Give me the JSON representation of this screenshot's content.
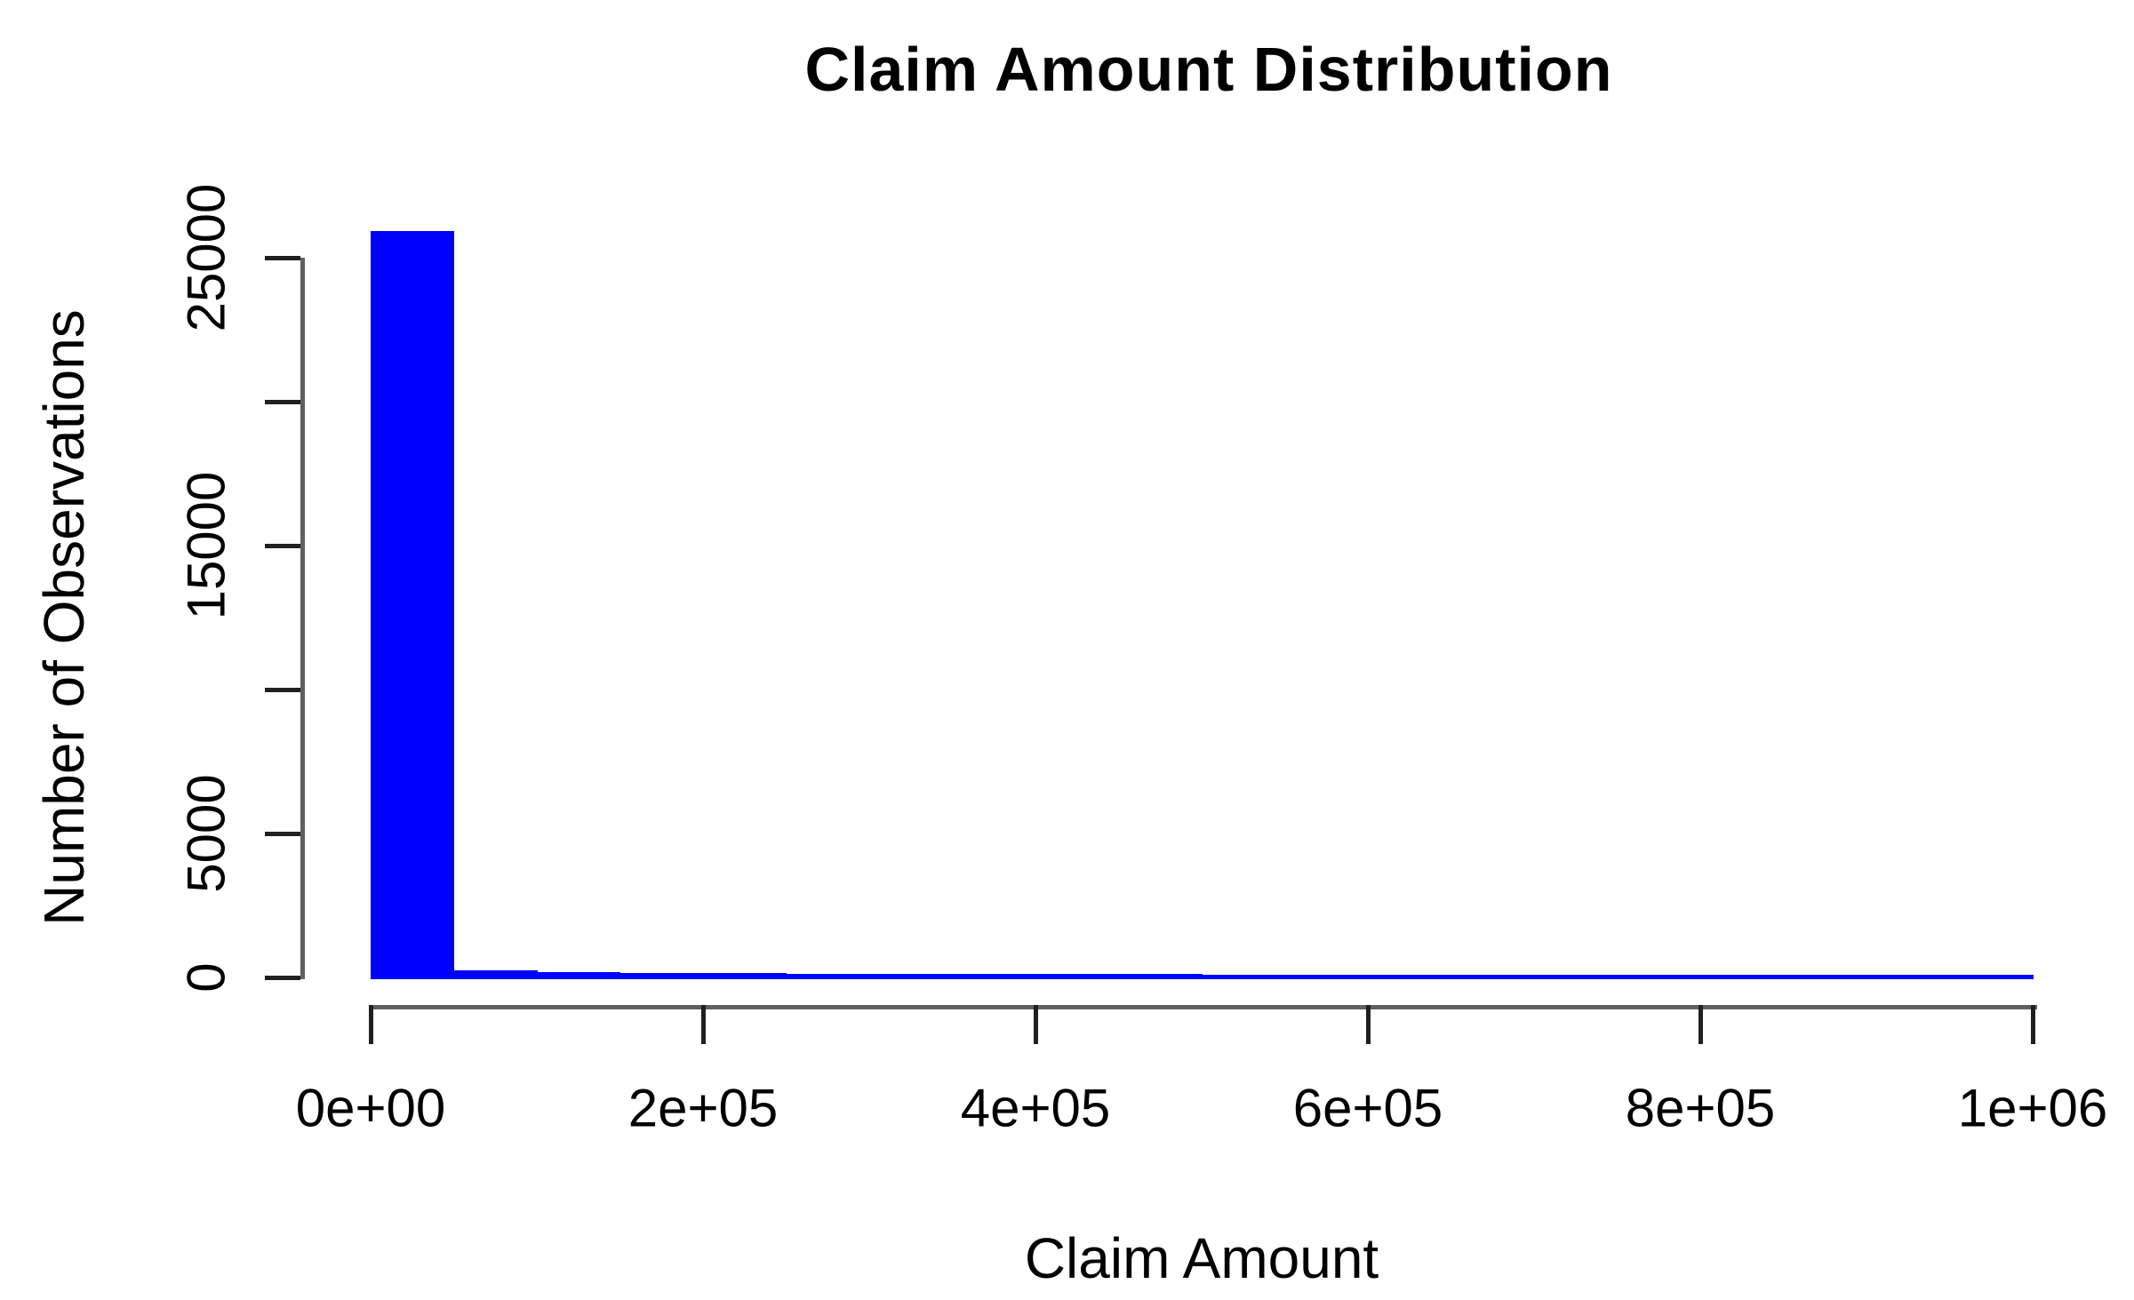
{
  "chart_data": {
    "type": "bar",
    "subtype": "histogram",
    "title": "Claim Amount Distribution",
    "xlabel": "Claim Amount",
    "ylabel": "Number of Observations",
    "xlim": [
      0,
      1000000
    ],
    "ylim": [
      0,
      26000
    ],
    "grid": "off",
    "legend": "none",
    "bar_color": "#0000ff",
    "axis_line_color": "#606060",
    "tick_color": "#202020",
    "text_color": "#000000",
    "bin_width": 50000,
    "x_ticks": [
      {
        "value": 0,
        "label": "0e+00"
      },
      {
        "value": 200000,
        "label": "2e+05"
      },
      {
        "value": 400000,
        "label": "4e+05"
      },
      {
        "value": 600000,
        "label": "6e+05"
      },
      {
        "value": 800000,
        "label": "8e+05"
      },
      {
        "value": 1000000,
        "label": "1e+06"
      }
    ],
    "y_ticks": [
      {
        "value": 0,
        "label": "0"
      },
      {
        "value": 5000,
        "label": "5000"
      },
      {
        "value": 10000,
        "label": ""
      },
      {
        "value": 15000,
        "label": "15000"
      },
      {
        "value": 20000,
        "label": ""
      },
      {
        "value": 25000,
        "label": "25000"
      }
    ],
    "bins": [
      {
        "x0": 0,
        "x1": 50000,
        "count": 26000
      },
      {
        "x0": 50000,
        "x1": 100000,
        "count": 300
      },
      {
        "x0": 100000,
        "x1": 150000,
        "count": 250
      },
      {
        "x0": 150000,
        "x1": 200000,
        "count": 220
      },
      {
        "x0": 200000,
        "x1": 250000,
        "count": 205
      },
      {
        "x0": 250000,
        "x1": 300000,
        "count": 195
      },
      {
        "x0": 300000,
        "x1": 350000,
        "count": 185
      },
      {
        "x0": 350000,
        "x1": 400000,
        "count": 180
      },
      {
        "x0": 400000,
        "x1": 450000,
        "count": 175
      },
      {
        "x0": 450000,
        "x1": 500000,
        "count": 170
      },
      {
        "x0": 500000,
        "x1": 550000,
        "count": 165
      },
      {
        "x0": 550000,
        "x1": 600000,
        "count": 160
      },
      {
        "x0": 600000,
        "x1": 650000,
        "count": 158
      },
      {
        "x0": 650000,
        "x1": 700000,
        "count": 155
      },
      {
        "x0": 700000,
        "x1": 750000,
        "count": 152
      },
      {
        "x0": 750000,
        "x1": 800000,
        "count": 150
      },
      {
        "x0": 800000,
        "x1": 850000,
        "count": 148
      },
      {
        "x0": 850000,
        "x1": 900000,
        "count": 146
      },
      {
        "x0": 900000,
        "x1": 950000,
        "count": 144
      },
      {
        "x0": 950000,
        "x1": 1000000,
        "count": 142
      }
    ]
  }
}
